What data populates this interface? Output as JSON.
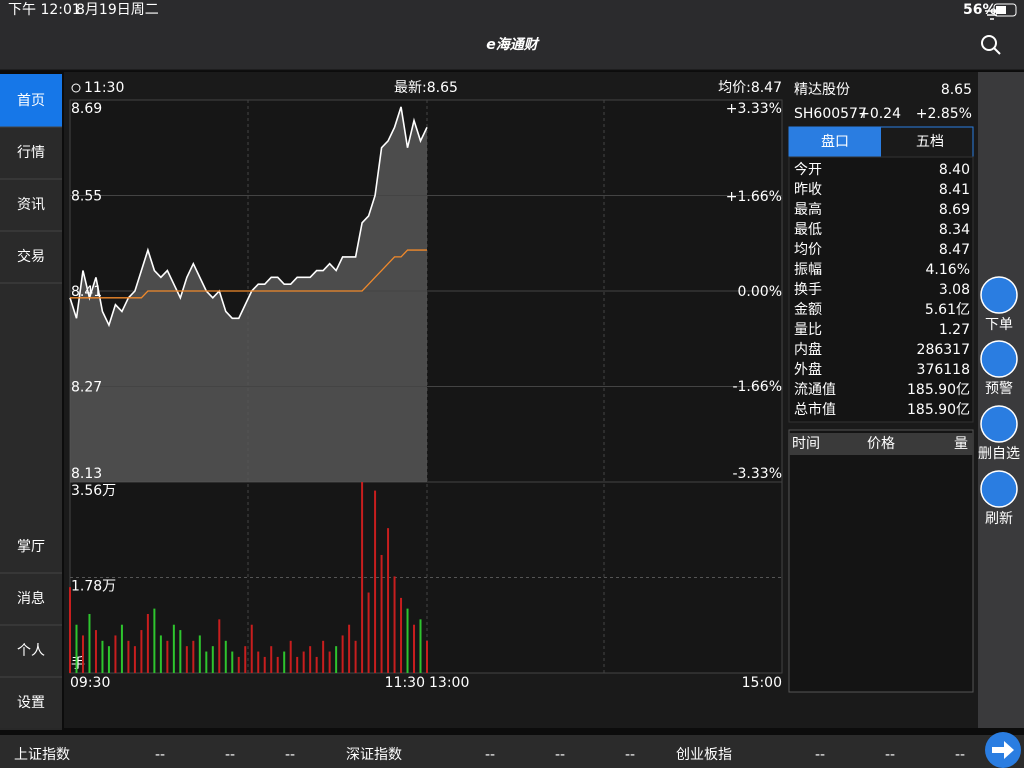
{
  "status_bar": {
    "time": "下午 12:01",
    "date": "8月19日周二",
    "battery": "56%"
  },
  "header": {
    "title": "e海通财"
  },
  "sidebar": {
    "items": [
      "首页",
      "行情",
      "资讯",
      "交易",
      "掌厅",
      "消息",
      "个人",
      "设置"
    ]
  },
  "chart_data": {
    "type": "line",
    "time": "11:30",
    "latest": "最新:8.65",
    "average": "均价:8.47",
    "ylim": [
      8.13,
      8.69
    ],
    "yticks": [
      8.69,
      8.55,
      8.41,
      8.27,
      8.13
    ],
    "y2lim": [
      -3.33,
      3.33
    ],
    "y2ticks": [
      {
        "value": 3.33,
        "label": "+3.33%"
      },
      {
        "value": 1.66,
        "label": "+1.66%"
      },
      {
        "value": 0,
        "label": "0.00%"
      },
      {
        "value": -1.66,
        "label": "-1.66%"
      },
      {
        "value": -3.33,
        "label": "-3.33%"
      }
    ],
    "xtick_labels": [
      "09:30",
      "11:30",
      "13:00",
      "15:00"
    ],
    "series": [
      {
        "color": "#ffffff",
        "values": [
          8.4,
          8.37,
          8.44,
          8.4,
          8.43,
          8.38,
          8.36,
          8.39,
          8.38,
          8.4,
          8.41,
          8.44,
          8.47,
          8.44,
          8.43,
          8.44,
          8.42,
          8.4,
          8.43,
          8.45,
          8.43,
          8.41,
          8.4,
          8.41,
          8.38,
          8.37,
          8.37,
          8.39,
          8.41,
          8.42,
          8.42,
          8.43,
          8.43,
          8.42,
          8.42,
          8.43,
          8.43,
          8.43,
          8.44,
          8.44,
          8.45,
          8.44,
          8.46,
          8.46,
          8.46,
          8.51,
          8.52,
          8.55,
          8.62,
          8.63,
          8.65,
          8.68,
          8.62,
          8.66,
          8.63,
          8.65
        ]
      },
      {
        "color": "#f0892b",
        "values": [
          8.4,
          8.4,
          8.4,
          8.4,
          8.4,
          8.4,
          8.4,
          8.4,
          8.4,
          8.4,
          8.4,
          8.4,
          8.41,
          8.41,
          8.41,
          8.41,
          8.41,
          8.41,
          8.41,
          8.41,
          8.41,
          8.41,
          8.41,
          8.41,
          8.41,
          8.41,
          8.41,
          8.41,
          8.41,
          8.41,
          8.41,
          8.41,
          8.41,
          8.41,
          8.41,
          8.41,
          8.41,
          8.41,
          8.41,
          8.41,
          8.41,
          8.41,
          8.41,
          8.41,
          8.41,
          8.41,
          8.42,
          8.43,
          8.44,
          8.45,
          8.46,
          8.46,
          8.47,
          8.47,
          8.47,
          8.47
        ]
      }
    ],
    "volume": {
      "unit": "手",
      "ylim": [
        0,
        35600
      ],
      "yticks": [
        {
          "value": 35600,
          "label": "3.56万"
        },
        {
          "value": 17800,
          "label": "1.78万"
        }
      ],
      "values": [
        16000,
        9000,
        7000,
        11000,
        8000,
        6000,
        5000,
        7000,
        9000,
        6000,
        5000,
        8000,
        11000,
        12000,
        7000,
        6000,
        9000,
        8000,
        5000,
        6000,
        7000,
        4000,
        5000,
        10000,
        6000,
        4000,
        3000,
        5000,
        9000,
        4000,
        3000,
        5000,
        3000,
        4000,
        6000,
        3000,
        4000,
        5000,
        3000,
        6000,
        4000,
        5000,
        7000,
        9000,
        6000,
        35600,
        15000,
        34000,
        22000,
        27000,
        18000,
        14000,
        12000,
        9000,
        10000,
        6000
      ]
    }
  },
  "quote": {
    "name": "精达股份",
    "price": 8.65,
    "code": "SH600577",
    "change": "+0.24",
    "change_pct": "+2.85%"
  },
  "tabs": [
    "盘口",
    "五档"
  ],
  "stats": {
    "rows": [
      {
        "label": "今开",
        "value": "8.40",
        "color": "#33dd33"
      },
      {
        "label": "昨收",
        "value": "8.41",
        "color": "#ffffff"
      },
      {
        "label": "最高",
        "value": "8.69",
        "color": "#e8202a"
      },
      {
        "label": "最低",
        "value": "8.34",
        "color": "#33dd33"
      },
      {
        "label": "均价",
        "value": "8.47",
        "color": "#e8202a"
      },
      {
        "label": "振幅",
        "value": "4.16%",
        "color": "#ffffff"
      },
      {
        "label": "换手",
        "value": "3.08",
        "color": "#ffffff"
      },
      {
        "label": "金额",
        "value": "5.61亿",
        "color": "#ffffff"
      },
      {
        "label": "量比",
        "value": "1.27",
        "color": "#ffffff"
      },
      {
        "label": "内盘",
        "value": "286317",
        "color": "#33dd33"
      },
      {
        "label": "外盘",
        "value": "376118",
        "color": "#e8202a"
      },
      {
        "label": "流通值",
        "value": "185.90亿",
        "color": "#ffffff"
      },
      {
        "label": "总市值",
        "value": "185.90亿",
        "color": "#ffffff"
      }
    ]
  },
  "trades": {
    "headers": [
      "时间",
      "价格",
      "量"
    ]
  },
  "actions": [
    "下单",
    "预警",
    "删自选",
    "刷新"
  ],
  "index_bar": [
    {
      "name": "上证指数",
      "values": [
        "--",
        "--",
        "--"
      ]
    },
    {
      "name": "深证指数",
      "values": [
        "--",
        "--",
        "--"
      ]
    },
    {
      "name": "创业板指",
      "values": [
        "--",
        "--",
        "--"
      ]
    }
  ]
}
